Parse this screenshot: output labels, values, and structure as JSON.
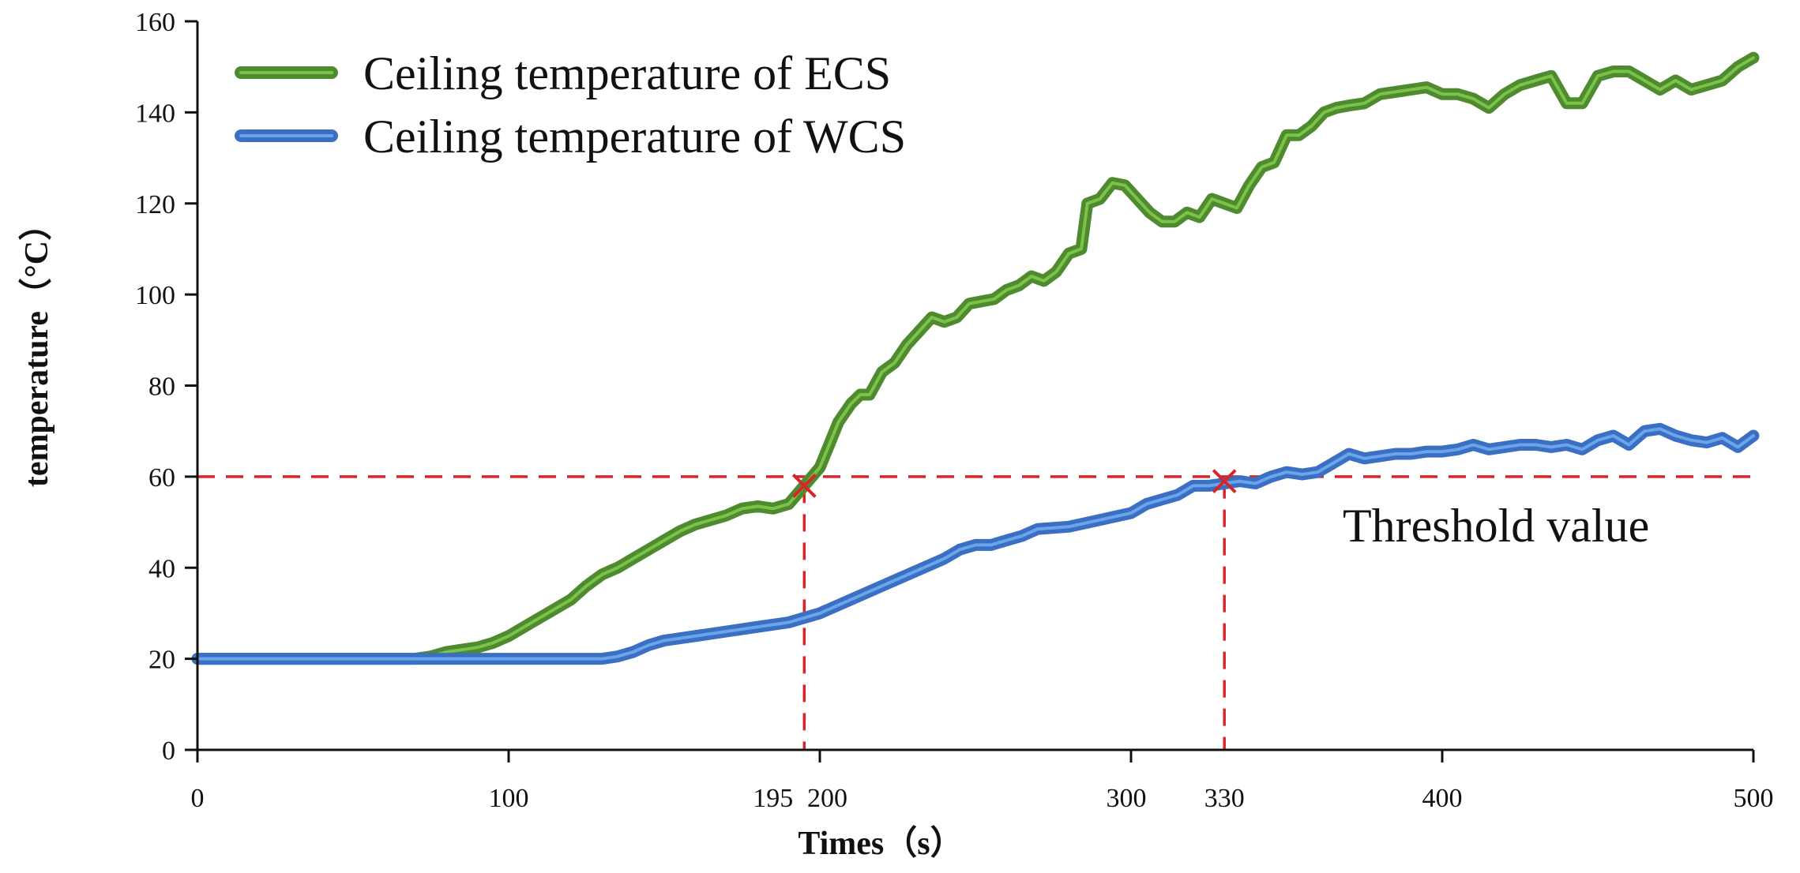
{
  "chart_data": {
    "type": "line",
    "title": "",
    "xlabel": "Times（s）",
    "ylabel": "temperature（°C）",
    "xlim": [
      0,
      500
    ],
    "ylim": [
      0,
      160
    ],
    "x_ticks": [
      {
        "value": 0,
        "label": "0"
      },
      {
        "value": 100,
        "label": "100"
      },
      {
        "value": 195,
        "label": "195"
      },
      {
        "value": 200,
        "label": "200"
      },
      {
        "value": 300,
        "label": "300"
      },
      {
        "value": 330,
        "label": "330"
      },
      {
        "value": 400,
        "label": "400"
      },
      {
        "value": 500,
        "label": "500"
      }
    ],
    "y_ticks": [
      {
        "value": 0,
        "label": "0"
      },
      {
        "value": 20,
        "label": "20"
      },
      {
        "value": 40,
        "label": "40"
      },
      {
        "value": 60,
        "label": "60"
      },
      {
        "value": 80,
        "label": "80"
      },
      {
        "value": 100,
        "label": "100"
      },
      {
        "value": 120,
        "label": "120"
      },
      {
        "value": 140,
        "label": "140"
      },
      {
        "value": 160,
        "label": "160"
      }
    ],
    "legend_position": "top-left",
    "series": [
      {
        "name": "Ceiling temperature of ECS",
        "color": "#4e8a2e",
        "highlight": "#7cc24a",
        "points": [
          [
            0,
            20
          ],
          [
            20,
            20
          ],
          [
            40,
            20
          ],
          [
            60,
            20
          ],
          [
            70,
            20
          ],
          [
            75,
            20.5
          ],
          [
            80,
            21.5
          ],
          [
            85,
            22
          ],
          [
            90,
            22.5
          ],
          [
            95,
            23.5
          ],
          [
            100,
            25
          ],
          [
            105,
            27
          ],
          [
            110,
            29
          ],
          [
            115,
            31
          ],
          [
            120,
            33
          ],
          [
            125,
            36
          ],
          [
            130,
            38.5
          ],
          [
            135,
            40
          ],
          [
            140,
            42
          ],
          [
            145,
            44
          ],
          [
            150,
            46
          ],
          [
            155,
            48
          ],
          [
            160,
            49.5
          ],
          [
            165,
            50.5
          ],
          [
            170,
            51.5
          ],
          [
            175,
            53
          ],
          [
            180,
            53.5
          ],
          [
            185,
            53
          ],
          [
            190,
            54
          ],
          [
            195,
            58
          ],
          [
            200,
            62
          ],
          [
            203,
            67
          ],
          [
            206,
            72
          ],
          [
            210,
            76
          ],
          [
            213,
            78
          ],
          [
            216,
            78
          ],
          [
            220,
            83
          ],
          [
            224,
            85
          ],
          [
            228,
            89
          ],
          [
            232,
            92
          ],
          [
            236,
            95
          ],
          [
            240,
            94
          ],
          [
            244,
            95
          ],
          [
            248,
            98
          ],
          [
            252,
            98.5
          ],
          [
            256,
            99
          ],
          [
            260,
            101
          ],
          [
            264,
            102
          ],
          [
            268,
            104
          ],
          [
            272,
            103
          ],
          [
            276,
            105
          ],
          [
            280,
            109
          ],
          [
            284,
            110
          ],
          [
            286,
            120
          ],
          [
            290,
            121
          ],
          [
            294,
            124.5
          ],
          [
            298,
            124
          ],
          [
            302,
            121
          ],
          [
            306,
            118
          ],
          [
            310,
            116
          ],
          [
            314,
            116
          ],
          [
            318,
            118
          ],
          [
            322,
            117
          ],
          [
            326,
            121
          ],
          [
            330,
            120
          ],
          [
            334,
            119
          ],
          [
            338,
            124
          ],
          [
            342,
            128
          ],
          [
            346,
            129
          ],
          [
            350,
            135
          ],
          [
            354,
            135
          ],
          [
            358,
            137
          ],
          [
            362,
            140
          ],
          [
            366,
            141
          ],
          [
            370,
            141.5
          ],
          [
            375,
            142
          ],
          [
            380,
            144
          ],
          [
            385,
            144.5
          ],
          [
            390,
            145
          ],
          [
            395,
            145.5
          ],
          [
            400,
            144
          ],
          [
            405,
            144
          ],
          [
            410,
            143
          ],
          [
            415,
            141
          ],
          [
            420,
            144
          ],
          [
            425,
            146
          ],
          [
            430,
            147
          ],
          [
            435,
            148
          ],
          [
            440,
            142
          ],
          [
            445,
            142
          ],
          [
            450,
            148
          ],
          [
            455,
            149
          ],
          [
            460,
            149
          ],
          [
            465,
            147
          ],
          [
            470,
            145
          ],
          [
            475,
            147
          ],
          [
            480,
            145
          ],
          [
            485,
            146
          ],
          [
            490,
            147
          ],
          [
            495,
            150
          ],
          [
            500,
            152
          ]
        ]
      },
      {
        "name": "Ceiling temperature of WCS",
        "color": "#3a6fc4",
        "highlight": "#6aa5ea",
        "points": [
          [
            0,
            20
          ],
          [
            40,
            20
          ],
          [
            80,
            20
          ],
          [
            100,
            20
          ],
          [
            120,
            20
          ],
          [
            130,
            20
          ],
          [
            135,
            20.5
          ],
          [
            140,
            21.5
          ],
          [
            145,
            23
          ],
          [
            150,
            24
          ],
          [
            160,
            25
          ],
          [
            170,
            26
          ],
          [
            180,
            27
          ],
          [
            190,
            28
          ],
          [
            200,
            30
          ],
          [
            210,
            33
          ],
          [
            220,
            36
          ],
          [
            230,
            39
          ],
          [
            240,
            42
          ],
          [
            245,
            44
          ],
          [
            250,
            45
          ],
          [
            255,
            45
          ],
          [
            260,
            46
          ],
          [
            265,
            47
          ],
          [
            270,
            48.5
          ],
          [
            280,
            49
          ],
          [
            290,
            50.5
          ],
          [
            300,
            52
          ],
          [
            305,
            54
          ],
          [
            310,
            55
          ],
          [
            315,
            56
          ],
          [
            320,
            58
          ],
          [
            325,
            58
          ],
          [
            330,
            58.5
          ],
          [
            335,
            59
          ],
          [
            340,
            58.5
          ],
          [
            345,
            60
          ],
          [
            350,
            61
          ],
          [
            355,
            60.5
          ],
          [
            360,
            61
          ],
          [
            365,
            63
          ],
          [
            370,
            65
          ],
          [
            375,
            64
          ],
          [
            380,
            64.5
          ],
          [
            385,
            65
          ],
          [
            390,
            65
          ],
          [
            395,
            65.5
          ],
          [
            400,
            65.5
          ],
          [
            405,
            66
          ],
          [
            410,
            67
          ],
          [
            415,
            66
          ],
          [
            420,
            66.5
          ],
          [
            425,
            67
          ],
          [
            430,
            67
          ],
          [
            435,
            66.5
          ],
          [
            440,
            67
          ],
          [
            445,
            66
          ],
          [
            450,
            68
          ],
          [
            455,
            69
          ],
          [
            460,
            67
          ],
          [
            465,
            70
          ],
          [
            470,
            70.5
          ],
          [
            475,
            69
          ],
          [
            480,
            68
          ],
          [
            485,
            67.5
          ],
          [
            490,
            68.5
          ],
          [
            495,
            66.5
          ],
          [
            500,
            69
          ]
        ]
      }
    ],
    "threshold": {
      "value": 60,
      "label": "Threshold value",
      "color": "#d6262b"
    },
    "crossings": [
      {
        "x": 195,
        "y": 58
      },
      {
        "x": 330,
        "y": 59
      }
    ]
  }
}
